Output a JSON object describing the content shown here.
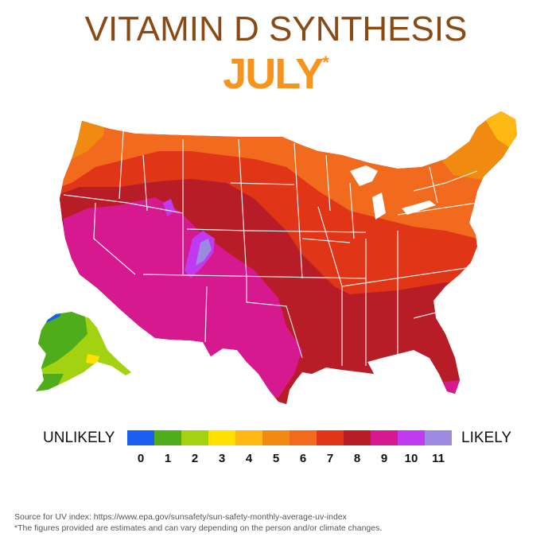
{
  "title": "VITAMIN D SYNTHESIS",
  "subtitle": "JULY",
  "subtitle_marker": "*",
  "legend": {
    "low_label": "UNLIKELY",
    "high_label": "LIKELY",
    "items": [
      {
        "value": "0",
        "color": "#1a5ff0"
      },
      {
        "value": "1",
        "color": "#4fad1c"
      },
      {
        "value": "2",
        "color": "#a2d210"
      },
      {
        "value": "3",
        "color": "#ffe000"
      },
      {
        "value": "4",
        "color": "#fdb813"
      },
      {
        "value": "5",
        "color": "#f08a11"
      },
      {
        "value": "6",
        "color": "#f26a1e"
      },
      {
        "value": "7",
        "color": "#e03516"
      },
      {
        "value": "8",
        "color": "#b81c26"
      },
      {
        "value": "9",
        "color": "#d6198e"
      },
      {
        "value": "10",
        "color": "#c03af2"
      },
      {
        "value": "11",
        "color": "#9b8ae0"
      }
    ]
  },
  "source": "Source for UV index: https://www.epa.gov/sunsafety/sun-safety-monthly-average-uv-index",
  "footnote": "*The figures provided are estimates and can vary depending on the person and/or climate changes."
}
